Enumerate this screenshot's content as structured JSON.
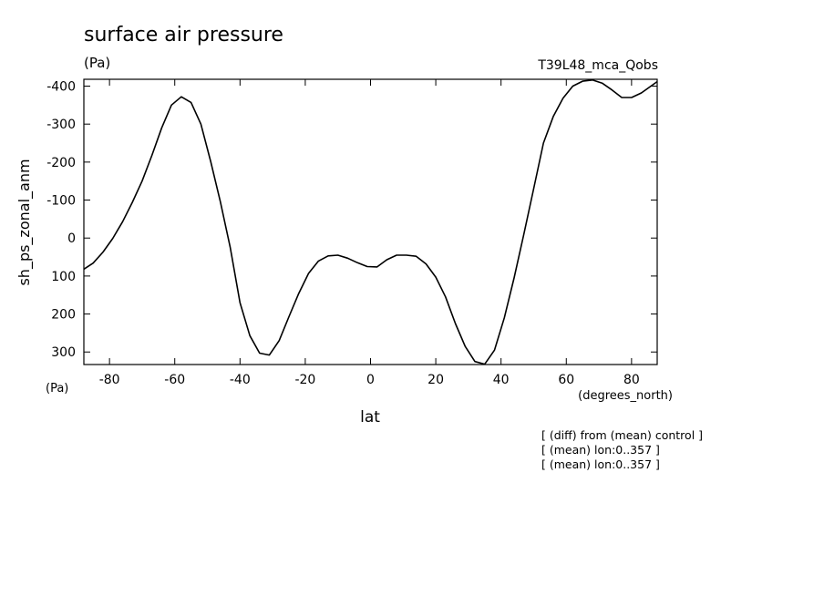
{
  "chart_data": {
    "type": "line",
    "title": "surface air pressure",
    "units": "(Pa)",
    "run_label": "T39L48_mca_Qobs",
    "ylabel": "sh_ps_zonal_anm",
    "y_units": "(Pa)",
    "xlabel": "lat",
    "x_units": "(degrees_north)",
    "xlim": [
      -87.86,
      87.86
    ],
    "ylim": [
      333,
      -418
    ],
    "y_axis_inverted": true,
    "x_ticks": [
      -80,
      -60,
      -40,
      -20,
      0,
      20,
      40,
      60,
      80
    ],
    "x_tick_labels": [
      "-80",
      "-60",
      "-40",
      "-20",
      "0",
      "20",
      "40",
      "60",
      "80"
    ],
    "y_ticks": [
      -400,
      -300,
      -200,
      -100,
      0,
      100,
      200,
      300
    ],
    "y_tick_labels": [
      "-400",
      "-300",
      "-200",
      "-100",
      "0",
      "100",
      "200",
      "300"
    ],
    "grid": false,
    "color": "#000000",
    "series": [
      {
        "x": [
          -87.9,
          -85,
          -82,
          -79,
          -76,
          -73,
          -70,
          -67,
          -64,
          -61,
          -58,
          -55,
          -52,
          -49,
          -46,
          -43,
          -40,
          -37,
          -34,
          -31,
          -28,
          -25,
          -22,
          -19,
          -16,
          -13,
          -10,
          -7,
          -4,
          -1,
          2,
          5,
          8,
          11,
          14,
          17,
          20,
          23,
          26,
          29,
          32,
          35,
          38,
          41,
          44,
          47,
          50,
          53,
          56,
          59,
          62,
          65,
          68,
          71,
          74,
          77,
          80,
          83,
          87.9
        ],
        "values": [
          82,
          66,
          37,
          1,
          -43,
          -94,
          -150,
          -218,
          -290,
          -350,
          -372,
          -357,
          -300,
          -202,
          -95,
          25,
          170,
          257,
          303,
          308,
          270,
          207,
          146,
          93,
          61,
          47,
          45,
          53,
          65,
          75,
          76,
          57,
          45,
          45,
          48,
          68,
          103,
          155,
          225,
          285,
          325,
          332,
          295,
          210,
          105,
          -10,
          -130,
          -250,
          -320,
          -368,
          -400,
          -413,
          -416,
          -408,
          -390,
          -370,
          -370,
          -382,
          -412
        ]
      }
    ],
    "annotations": [
      "[ (diff) from (mean) control ]",
      "[ (mean) lon:0..357 ]",
      "[ (mean) lon:0..357 ]"
    ]
  }
}
